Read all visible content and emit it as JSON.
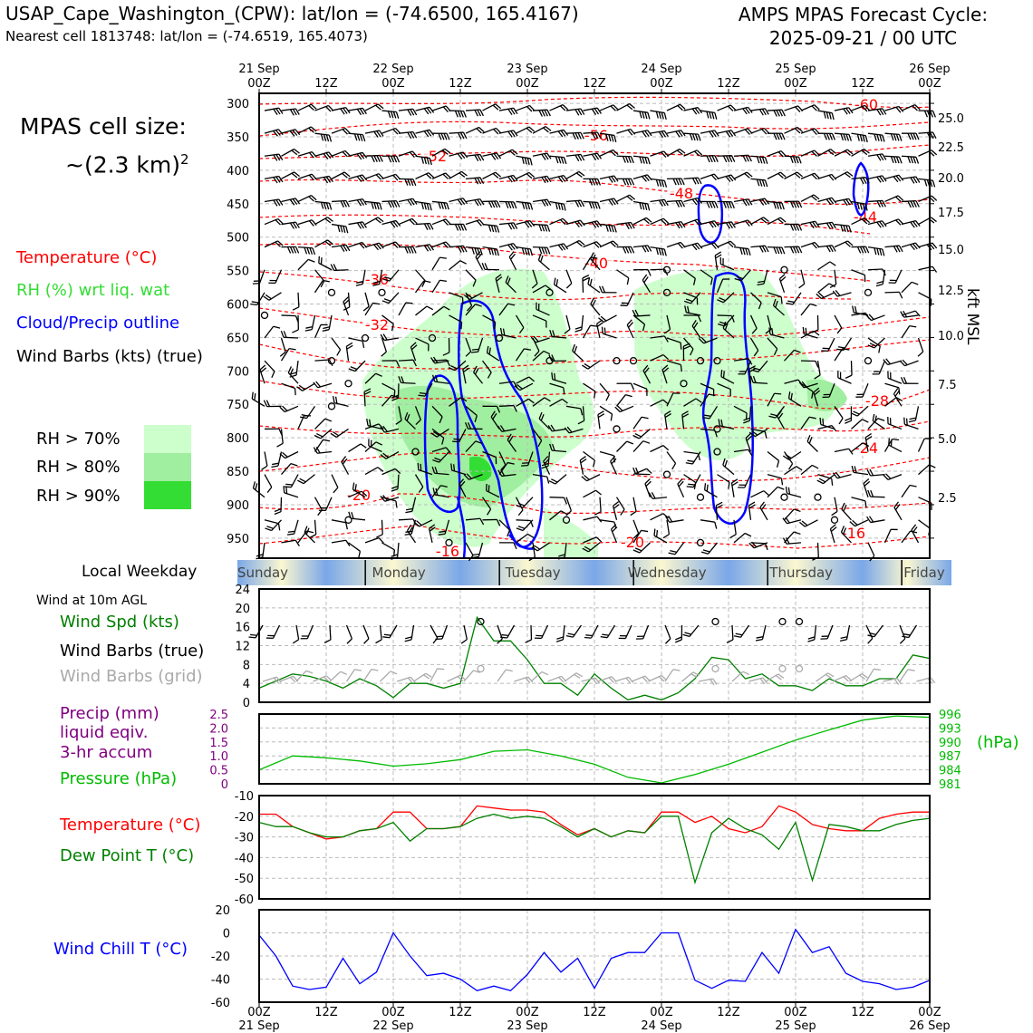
{
  "header": {
    "title_left": "USAP_Cape_Washington_(CPW): lat/lon = (-74.6500, 165.4167)",
    "subtitle_left": "Nearest cell 1813748: lat/lon = (-74.6519, 165.4073)",
    "title_right_1": "AMPS MPAS Forecast Cycle:",
    "title_right_2": "2025-09-21 / 00 UTC"
  },
  "cell_size": {
    "line1": "MPAS cell size:",
    "line2": "~(2.3 km)",
    "sup": "2"
  },
  "legend": {
    "temperature": "Temperature (°C)",
    "rh": "RH (%) wrt liq. wat",
    "cloud": "Cloud/Precip outline",
    "wind": "Wind Barbs (kts) (true)",
    "rh70": "RH > 70%",
    "rh80": "RH > 80%",
    "rh90": "RH > 90%"
  },
  "colors": {
    "temperature": "#ff0000",
    "rh_text": "#33dd33",
    "cloud": "#0000ff",
    "rh70": "#ccffcc",
    "rh80": "#a0eea0",
    "rh90": "#33dd33",
    "wind_spd": "#008000",
    "grid_barb": "#aaaaaa",
    "precip": "#800080",
    "pressure": "#00bb00",
    "dewpoint": "#008000",
    "windchill": "#0000ff"
  },
  "time_axis": {
    "top_dates": [
      "21 Sep",
      "22 Sep",
      "23 Sep",
      "24 Sep",
      "25 Sep",
      "26 Sep"
    ],
    "ticks": [
      "00Z",
      "12Z",
      "00Z",
      "12Z",
      "00Z",
      "12Z",
      "00Z",
      "12Z",
      "00Z",
      "12Z",
      "00Z"
    ],
    "bottom_dates": [
      "21 Sep",
      "22 Sep",
      "23 Sep",
      "24 Sep",
      "25 Sep",
      "26 Sep"
    ]
  },
  "weekday": {
    "label": "Local Weekday",
    "days": [
      "Sunday",
      "Monday",
      "Tuesday",
      "Wednesday",
      "Thursday",
      "Friday"
    ]
  },
  "wind_label": "Wind at 10m AGL",
  "panel_labels": {
    "wind_spd": "Wind Spd (kts)",
    "wind_barbs_true": "Wind Barbs (true)",
    "wind_barbs_grid": "Wind Barbs (grid)",
    "precip_1": "Precip (mm)",
    "precip_2": "liquid eqiv.",
    "precip_3": "3-hr accum",
    "pressure": "Pressure (hPa)",
    "pressure_unit": "(hPa)",
    "temperature": "Temperature (°C)",
    "dewpoint": "Dew Point T (°C)",
    "windchill": "Wind Chill T (°C)",
    "kft": "kft MSL"
  },
  "chart_data": [
    {
      "type": "heatmap",
      "name": "vertical cross-section",
      "y_pressure_hpa": [
        "300",
        "350",
        "400",
        "450",
        "500",
        "550",
        "600",
        "650",
        "700",
        "750",
        "800",
        "850",
        "900",
        "950"
      ],
      "y_kft_msl": [
        "25.0",
        "22.5",
        "20.0",
        "17.5",
        "15.0",
        "12.5",
        "10.0",
        "7.5",
        "5.0",
        "2.5"
      ],
      "temperature_contour_labels": [
        "-60",
        "-56",
        "-52",
        "-48",
        "-44",
        "-40",
        "-36",
        "-32",
        "-28",
        "-24",
        "-20",
        "-20",
        "-16",
        "-16"
      ]
    },
    {
      "type": "line",
      "name": "wind speed 10m",
      "ylim": [
        0,
        24
      ],
      "yticks": [
        "0",
        "4",
        "8",
        "12",
        "16",
        "20",
        "24"
      ],
      "x_hours": [
        0,
        6,
        9,
        12,
        15,
        18,
        21,
        24,
        27,
        30,
        33,
        36,
        39,
        42,
        45,
        48,
        51,
        54,
        57,
        60,
        63,
        66,
        69,
        72,
        75,
        78,
        81,
        84,
        87,
        90,
        93,
        96,
        99,
        102,
        105,
        108,
        111,
        114,
        117,
        120
      ],
      "values": [
        3,
        6,
        5.5,
        4.5,
        3,
        5,
        3.5,
        1,
        4,
        4,
        3,
        4,
        18,
        13,
        13,
        9,
        4,
        4,
        1.5,
        6,
        3,
        0.5,
        1.5,
        0.5,
        2,
        5,
        9.5,
        9,
        5,
        6,
        3.5,
        3.5,
        2.5,
        5,
        3.5,
        3.5,
        5,
        5,
        10,
        9.3
      ]
    },
    {
      "type": "line",
      "name": "pressure and precip",
      "precip_ylim": [
        0,
        2.5
      ],
      "precip_yticks": [
        "0",
        "0.5",
        "1.0",
        "1.5",
        "2.0",
        "2.5"
      ],
      "pressure_ylim": [
        981,
        996
      ],
      "pressure_yticks": [
        "981",
        "984",
        "987",
        "990",
        "993",
        "996"
      ],
      "precip_values": [],
      "x_hours": [
        0,
        6,
        9,
        12,
        18,
        24,
        30,
        36,
        42,
        48,
        54,
        60,
        66,
        72,
        78,
        84,
        90,
        96,
        102,
        108,
        114,
        120
      ],
      "pressure_values": [
        984,
        987,
        986.8,
        986.6,
        985.9,
        984.8,
        985.3,
        986.2,
        988.0,
        988.3,
        987,
        985.2,
        982.4,
        981.2,
        983.0,
        985.2,
        987.8,
        990.4,
        992.6,
        994.7,
        995.6,
        995.3
      ]
    },
    {
      "type": "line",
      "name": "temperature and dew point",
      "ylim": [
        -60,
        -10
      ],
      "yticks": [
        "-10",
        "-20",
        "-30",
        "-40",
        "-50",
        "-60"
      ],
      "x_hours": [
        0,
        3,
        6,
        9,
        12,
        15,
        18,
        21,
        24,
        27,
        30,
        33,
        36,
        39,
        42,
        45,
        48,
        51,
        54,
        57,
        60,
        63,
        66,
        69,
        72,
        75,
        78,
        81,
        84,
        87,
        90,
        93,
        96,
        99,
        102,
        105,
        108,
        111,
        114,
        117,
        120
      ],
      "temperature": [
        -19,
        -19,
        -25,
        -28,
        -31,
        -30,
        -27,
        -26,
        -18,
        -18,
        -26,
        -26,
        -25,
        -15,
        -16,
        -17,
        -17,
        -18,
        -24,
        -29,
        -26,
        -30,
        -27,
        -28,
        -18,
        -18,
        -23,
        -20,
        -26,
        -28,
        -25,
        -15,
        -18,
        -24,
        -26,
        -27,
        -27,
        -21,
        -19,
        -18,
        -18
      ],
      "dewpoint": [
        -23,
        -25,
        -25,
        -28,
        -30,
        -30,
        -27,
        -26,
        -23,
        -32,
        -26,
        -26,
        -25,
        -21,
        -19,
        -21,
        -20,
        -21,
        -25,
        -30,
        -26,
        -30,
        -27,
        -28,
        -20,
        -20,
        -52,
        -28,
        -21,
        -26,
        -29,
        -36,
        -23,
        -51,
        -24,
        -25,
        -27,
        -27,
        -24,
        -22,
        -21
      ]
    },
    {
      "type": "line",
      "name": "wind chill",
      "ylim": [
        -60,
        20
      ],
      "yticks": [
        "20",
        "0",
        "-20",
        "-40",
        "-60"
      ],
      "x_hours": [
        0,
        3,
        6,
        9,
        12,
        15,
        18,
        21,
        24,
        27,
        30,
        33,
        36,
        39,
        42,
        45,
        48,
        51,
        54,
        57,
        60,
        63,
        66,
        69,
        72,
        75,
        78,
        81,
        84,
        87,
        90,
        93,
        96,
        99,
        102,
        105,
        108,
        111,
        114,
        117,
        120
      ],
      "values": [
        -2,
        -20,
        -46,
        -49,
        -47,
        -22,
        -44,
        -34,
        0,
        -20,
        -37,
        -35,
        -40,
        -50,
        -46,
        -50,
        -36,
        -17,
        -34,
        -22,
        -48,
        -22,
        -17,
        -17,
        0,
        0,
        -41,
        -48,
        -41,
        -42,
        -17,
        -35,
        3,
        -17,
        -12,
        -35,
        -42,
        -44,
        -49,
        -47,
        -41
      ]
    }
  ]
}
